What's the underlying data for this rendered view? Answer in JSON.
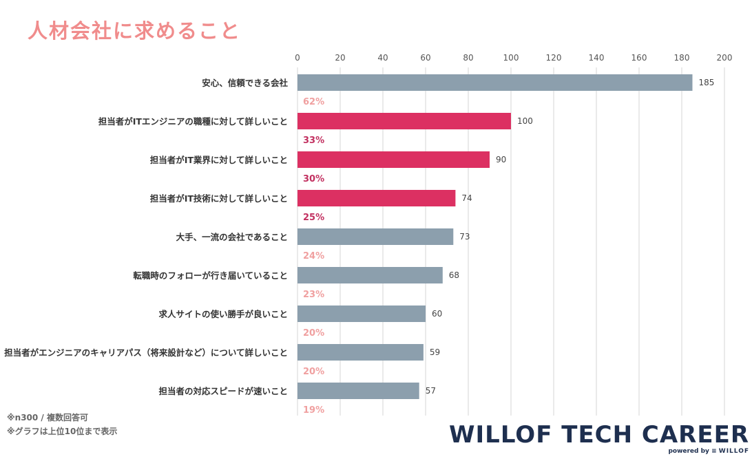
{
  "title": "人材会社に求めること",
  "notes": [
    "※n300 / 複数回答可",
    "※グラフは上位10位まで表示"
  ],
  "logo": {
    "main": "WILLOF TECH CAREER",
    "powered": "powered by",
    "brand": "WILLOF"
  },
  "colors": {
    "highlight": "#dc3062",
    "normal": "#8c9fad",
    "pct_normal": "#f0a0a0",
    "pct_highlight": "#c23060",
    "grid": "#d4d4d4"
  },
  "chart_data": {
    "type": "bar",
    "orientation": "horizontal",
    "xlim": [
      0,
      200
    ],
    "ticks": [
      "0",
      "20",
      "40",
      "60",
      "80",
      "100",
      "120",
      "140",
      "160",
      "180",
      "200"
    ],
    "grid": true,
    "categories": [
      "安心、信頼できる会社",
      "担当者がITエンジニアの職種に対して詳しいこと",
      "担当者がIT業界に対して詳しいこと",
      "担当者がIT技術に対して詳しいこと",
      "大手、一流の会社であること",
      "転職時のフォローが行き届いていること",
      "求人サイトの使い勝手が良いこと",
      "担当者がエンジニアのキャリアパス（将来設計など）について詳しいこと",
      "担当者の対応スピードが速いこと"
    ],
    "values": [
      185,
      100,
      90,
      74,
      73,
      68,
      60,
      59,
      57
    ],
    "percents": [
      "62%",
      "33%",
      "30%",
      "25%",
      "24%",
      "23%",
      "20%",
      "20%",
      "19%"
    ],
    "highlighted": [
      false,
      true,
      true,
      true,
      false,
      false,
      false,
      false,
      false
    ]
  }
}
